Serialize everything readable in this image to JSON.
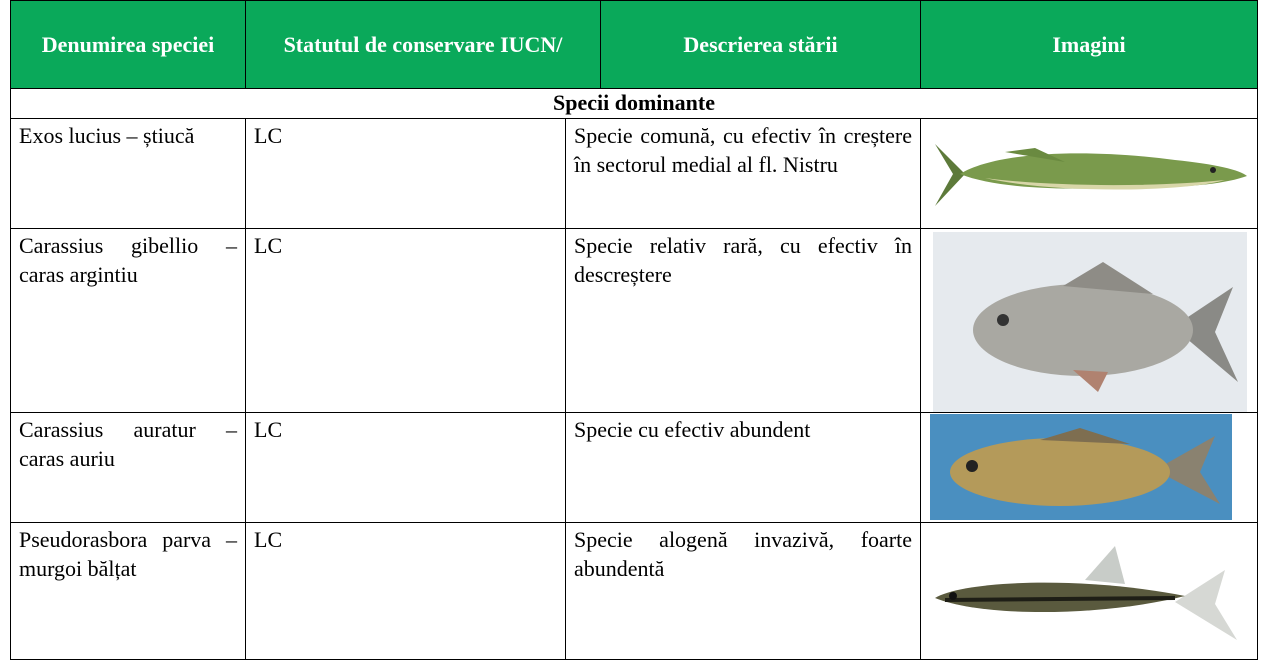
{
  "table": {
    "header": [
      "Denumirea speciei",
      "Statutul de conservare IUCN/",
      "Descrierea stării",
      "Imagini"
    ],
    "section": "Specii dominante",
    "rows": [
      [
        "Exos lucius – știucă",
        "LC",
        "Specie comună, cu efectiv în creștere în sectorul medial al fl. Nistru"
      ],
      [
        "Carassius gibellio – caras argintiu",
        "LC",
        "Specie relativ rară, cu efectiv în descreștere"
      ],
      [
        "Carassius auratur – caras auriu",
        "LC",
        "Specie cu efectiv abundent"
      ],
      [
        "Pseudorasbora parva – murgoi bălțat",
        "LC",
        "Specie alogenă invazivă, foarte abundentă"
      ]
    ]
  }
}
